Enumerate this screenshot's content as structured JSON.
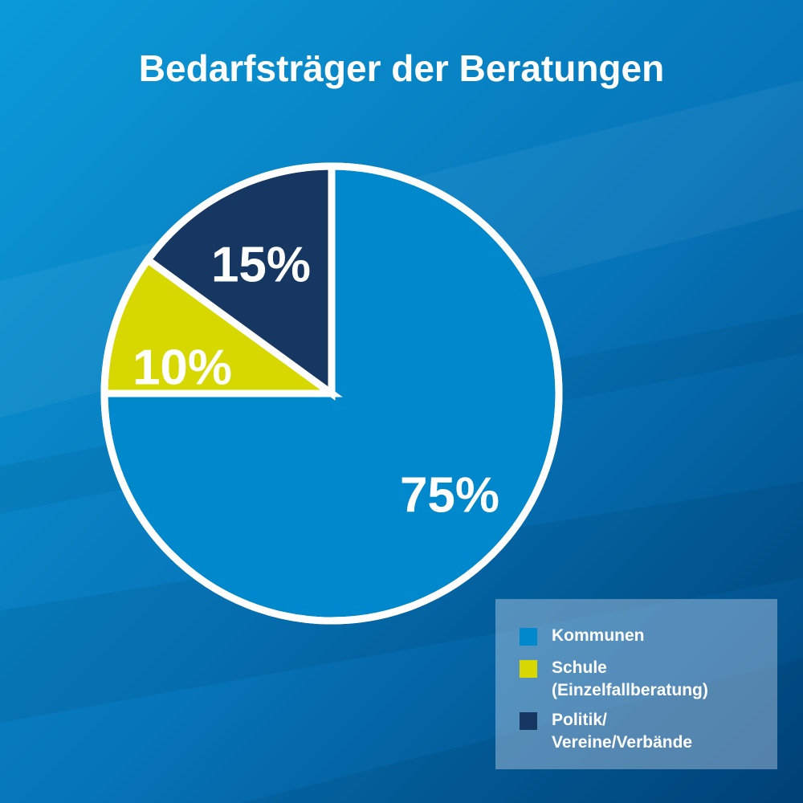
{
  "chart_data": {
    "type": "pie",
    "title": "Bedarfsträger der Beratungen",
    "slices": [
      {
        "label": "Kommunen",
        "value": 75,
        "display": "75%",
        "color": "#0088cc"
      },
      {
        "label": "Schule (Einzelfallberatung)",
        "value": 10,
        "display": "10%",
        "color": "#d7d800"
      },
      {
        "label": "Politik/ Vereine/Verbände",
        "value": 15,
        "display": "15%",
        "color": "#173763"
      }
    ],
    "legend_placement": "bottom-right"
  },
  "legend": {
    "items": [
      {
        "lines": [
          "Kommunen"
        ],
        "color": "#0088cc"
      },
      {
        "lines": [
          "Schule",
          "(Einzelfallberatung)"
        ],
        "color": "#d7d800"
      },
      {
        "lines": [
          "Politik/",
          "Vereine/Verbände"
        ],
        "color": "#173763"
      }
    ]
  },
  "colors": {
    "background_light": "#0a99d6",
    "background_dark": "#00447a",
    "outline": "#ffffff",
    "label_text": "#ffffff"
  }
}
